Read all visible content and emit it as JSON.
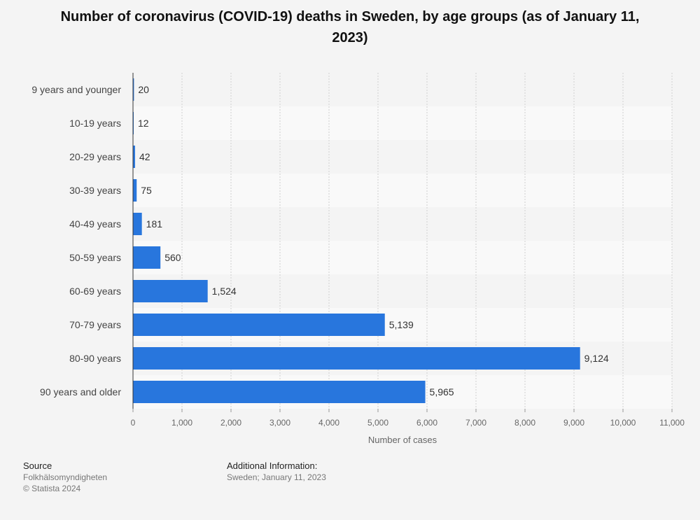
{
  "chart_data": {
    "type": "bar",
    "orientation": "horizontal",
    "title": "Number of coronavirus (COVID-19) deaths in Sweden, by age groups (as of January 11, 2023)",
    "categories": [
      "9 years and younger",
      "10-19 years",
      "20-29 years",
      "30-39 years",
      "40-49 years",
      "50-59 years",
      "60-69 years",
      "70-79 years",
      "80-90 years",
      "90 years and older"
    ],
    "values": [
      20,
      12,
      42,
      75,
      181,
      560,
      1524,
      5139,
      9124,
      5965
    ],
    "value_labels": [
      "20",
      "12",
      "42",
      "75",
      "181",
      "560",
      "1,524",
      "5,139",
      "9,124",
      "5,965"
    ],
    "xlabel": "Number of cases",
    "ylabel": "",
    "xlim": [
      0,
      11000
    ],
    "ticks": [
      0,
      1000,
      2000,
      3000,
      4000,
      5000,
      6000,
      7000,
      8000,
      9000,
      10000,
      11000
    ],
    "tick_labels": [
      "0",
      "1,000",
      "2,000",
      "3,000",
      "4,000",
      "5,000",
      "6,000",
      "7,000",
      "8,000",
      "9,000",
      "10,000",
      "11,000"
    ],
    "bar_color": "#2876dd",
    "grid": true
  },
  "footer": {
    "source_heading": "Source",
    "source_name": "Folkhälsomyndigheten",
    "copyright": "© Statista 2024",
    "additional_heading": "Additional Information:",
    "additional_text": "Sweden; January 11, 2023"
  }
}
